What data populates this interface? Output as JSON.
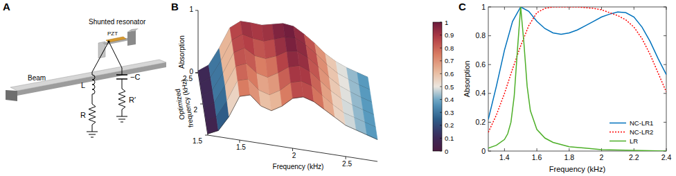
{
  "diagram": {
    "title": "A",
    "labels": {
      "beam": "Beam",
      "resonator": "Shunted resonator",
      "pzt": "PZT",
      "inductor": "L",
      "resistor": "R",
      "capacitor": "−C",
      "resistor2": "R′"
    }
  },
  "chart_data": [
    {
      "type": "surface",
      "title": "B",
      "xlabel": "Frequency (kHz)",
      "ylabel": "Optimized frequency (kHz)",
      "zlabel": "Absorption",
      "x": [
        1.2,
        1.3,
        1.4,
        1.5,
        1.6,
        1.7,
        1.8,
        1.9,
        2.0,
        2.1,
        2.2,
        2.3,
        2.4,
        2.5,
        2.6,
        2.7,
        2.8
      ],
      "y": [
        1.5,
        1.7,
        1.9,
        2.1,
        2.3,
        2.5
      ],
      "cells": [
        [
          0.02,
          0.1,
          0.35,
          0.7,
          0.75,
          0.6,
          0.55,
          0.65,
          0.8,
          0.85,
          0.8,
          0.7,
          0.6,
          0.5,
          0.45,
          0.4,
          0.35
        ],
        [
          0.02,
          0.12,
          0.4,
          0.75,
          0.8,
          0.65,
          0.6,
          0.7,
          0.85,
          0.9,
          0.85,
          0.72,
          0.6,
          0.5,
          0.45,
          0.4,
          0.35
        ],
        [
          0.03,
          0.15,
          0.45,
          0.78,
          0.85,
          0.72,
          0.68,
          0.78,
          0.9,
          0.95,
          0.88,
          0.75,
          0.62,
          0.52,
          0.45,
          0.4,
          0.35
        ],
        [
          0.03,
          0.15,
          0.45,
          0.8,
          0.9,
          0.8,
          0.78,
          0.85,
          0.95,
          0.98,
          0.9,
          0.78,
          0.64,
          0.53,
          0.46,
          0.4,
          0.35
        ],
        [
          0.03,
          0.15,
          0.45,
          0.8,
          0.92,
          0.88,
          0.86,
          0.92,
          0.98,
          0.99,
          0.9,
          0.78,
          0.64,
          0.53,
          0.46,
          0.4,
          0.35
        ],
        [
          0.03,
          0.15,
          0.45,
          0.8,
          0.93,
          0.93,
          0.92,
          0.96,
          1.0,
          0.98,
          0.88,
          0.76,
          0.62,
          0.52,
          0.45,
          0.4,
          0.35
        ]
      ],
      "xlim": [
        1.2,
        2.8
      ],
      "xticks": [
        1.5,
        2,
        2.5
      ],
      "ylim": [
        1.5,
        2.5
      ],
      "yticks": [
        1.5,
        2,
        2.5
      ],
      "zlim": [
        0,
        1
      ],
      "zticks": [
        0,
        1
      ],
      "colorbar": {
        "range": [
          0,
          1
        ],
        "ticks": [
          0,
          0.1,
          0.2,
          0.3,
          0.4,
          0.5,
          0.6,
          0.7,
          0.8,
          0.9,
          1
        ]
      }
    },
    {
      "type": "line",
      "title": "C",
      "xlabel": "Frequency (kHz)",
      "ylabel": "Absorption",
      "xlim": [
        1.3,
        2.4
      ],
      "xticks": [
        1.4,
        1.6,
        1.8,
        2,
        2.2,
        2.4
      ],
      "ylim": [
        0,
        1
      ],
      "yticks": [
        0,
        0.2,
        0.4,
        0.6,
        0.8,
        1
      ],
      "legend": "lower right",
      "series": [
        {
          "name": "NC-LR1",
          "color": "#0072bd",
          "line_style": "solid",
          "x": [
            1.3,
            1.35,
            1.4,
            1.45,
            1.5,
            1.55,
            1.6,
            1.65,
            1.7,
            1.75,
            1.8,
            1.85,
            1.9,
            1.95,
            2.0,
            2.05,
            2.1,
            2.15,
            2.2,
            2.25,
            2.3,
            2.35,
            2.4
          ],
          "values": [
            0.22,
            0.45,
            0.7,
            0.9,
            1.0,
            0.97,
            0.9,
            0.85,
            0.82,
            0.81,
            0.82,
            0.84,
            0.87,
            0.9,
            0.93,
            0.95,
            0.965,
            0.96,
            0.93,
            0.86,
            0.76,
            0.64,
            0.53
          ]
        },
        {
          "name": "NC-LR2",
          "color": "#ff0000",
          "line_style": "dotted",
          "x": [
            1.3,
            1.35,
            1.4,
            1.45,
            1.5,
            1.55,
            1.6,
            1.65,
            1.7,
            1.75,
            1.8,
            1.85,
            1.9,
            1.95,
            2.0,
            2.05,
            2.1,
            2.15,
            2.2,
            2.25,
            2.3,
            2.35,
            2.4
          ],
          "values": [
            0.13,
            0.25,
            0.4,
            0.57,
            0.73,
            0.87,
            0.96,
            0.99,
            1.0,
            1.0,
            1.0,
            1.0,
            0.995,
            0.99,
            0.98,
            0.96,
            0.94,
            0.91,
            0.86,
            0.78,
            0.67,
            0.54,
            0.41
          ]
        },
        {
          "name": "LR",
          "color": "#4daf28",
          "line_style": "solid",
          "x": [
            1.3,
            1.35,
            1.4,
            1.42,
            1.44,
            1.46,
            1.48,
            1.5,
            1.52,
            1.54,
            1.56,
            1.6,
            1.65,
            1.7,
            1.8,
            1.9,
            2.0,
            2.2,
            2.4
          ],
          "values": [
            0.02,
            0.04,
            0.08,
            0.12,
            0.2,
            0.38,
            0.7,
            1.0,
            0.75,
            0.45,
            0.28,
            0.15,
            0.09,
            0.06,
            0.03,
            0.02,
            0.01,
            0.005,
            0.0
          ]
        }
      ]
    }
  ]
}
